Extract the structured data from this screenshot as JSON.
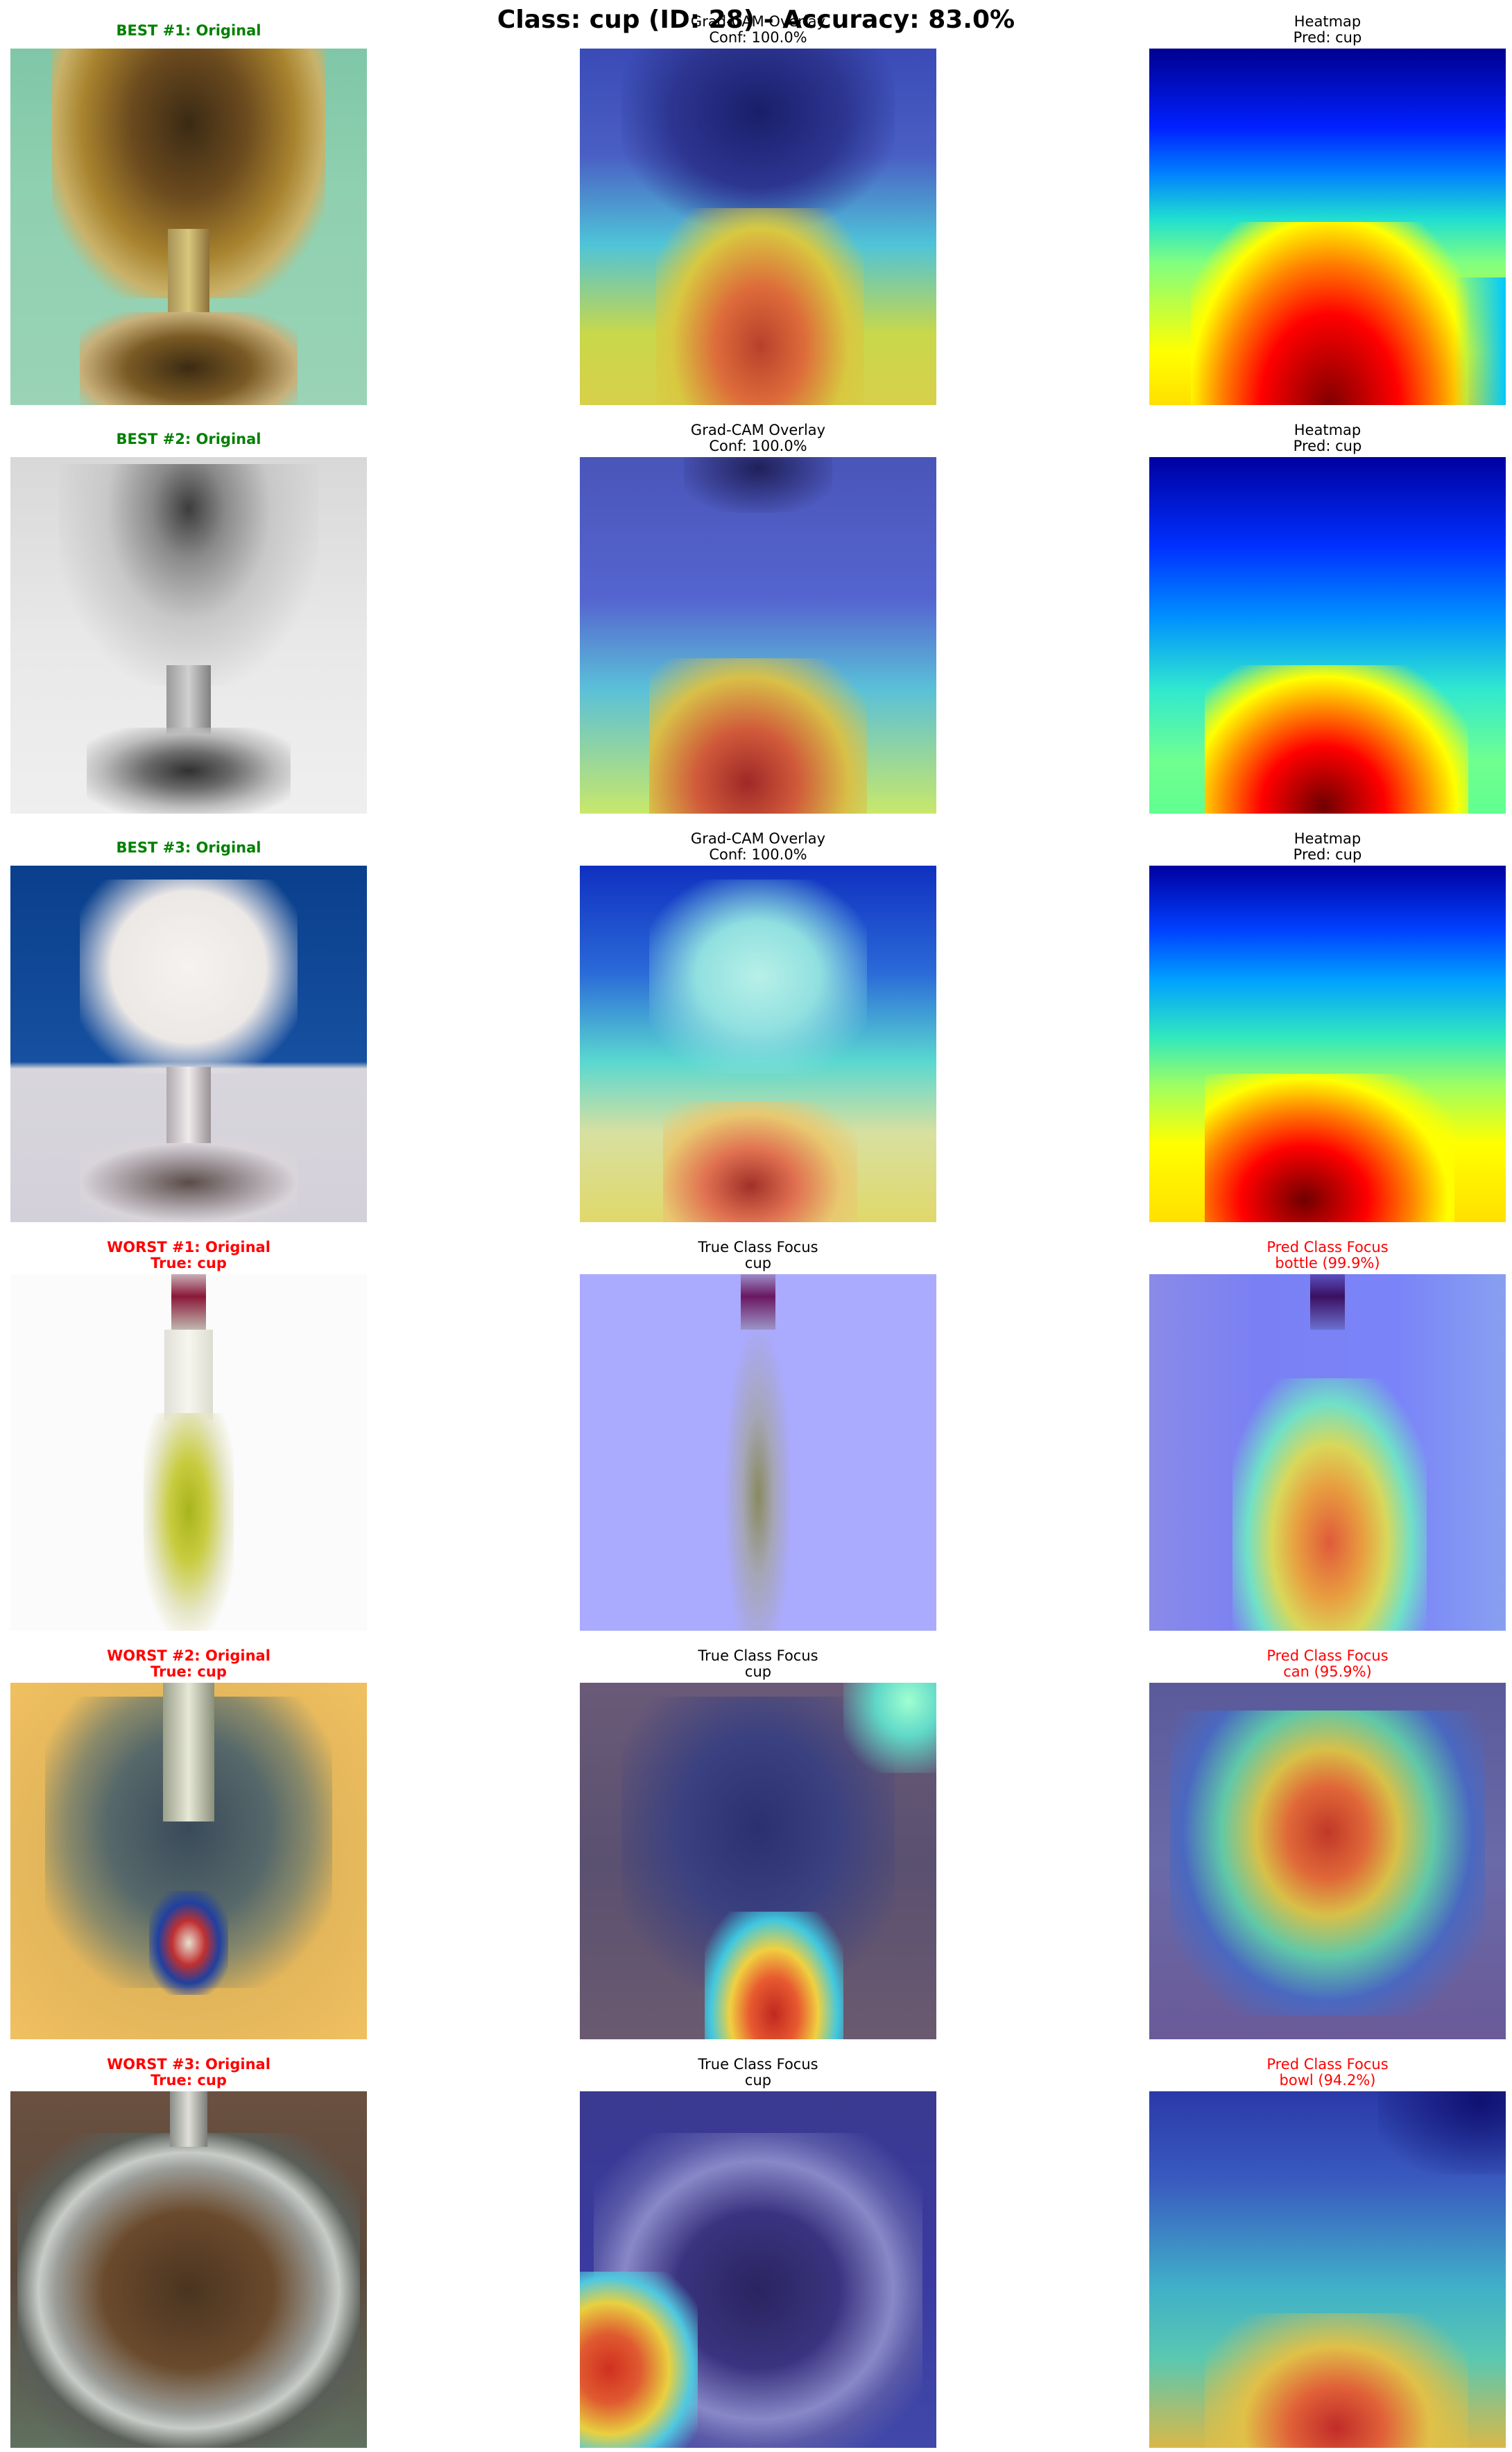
{
  "figure": {
    "title": "Class: cup (ID: 28) - Accuracy: 83.0%"
  },
  "colors": {
    "best": "#008000",
    "worst": "#ff0000",
    "neutral": "#000000"
  },
  "rows": [
    {
      "kind": "best",
      "original": {
        "line1": "BEST #1: Original"
      },
      "middle": {
        "line1": "Grad-CAM Overlay",
        "line2": "Conf: 100.0%"
      },
      "right": {
        "line1": "Heatmap",
        "line2": "Pred: cup"
      }
    },
    {
      "kind": "best",
      "original": {
        "line1": "BEST #2: Original"
      },
      "middle": {
        "line1": "Grad-CAM Overlay",
        "line2": "Conf: 100.0%"
      },
      "right": {
        "line1": "Heatmap",
        "line2": "Pred: cup"
      }
    },
    {
      "kind": "best",
      "original": {
        "line1": "BEST #3: Original"
      },
      "middle": {
        "line1": "Grad-CAM Overlay",
        "line2": "Conf: 100.0%"
      },
      "right": {
        "line1": "Heatmap",
        "line2": "Pred: cup"
      }
    },
    {
      "kind": "worst",
      "original": {
        "line1": "WORST #1: Original",
        "line2": "True: cup"
      },
      "middle": {
        "line1": "True Class Focus",
        "line2": "cup"
      },
      "right": {
        "line1": "Pred Class Focus",
        "line2": "bottle (99.9%)"
      }
    },
    {
      "kind": "worst",
      "original": {
        "line1": "WORST #2: Original",
        "line2": "True: cup"
      },
      "middle": {
        "line1": "True Class Focus",
        "line2": "cup"
      },
      "right": {
        "line1": "Pred Class Focus",
        "line2": "can (95.9%)"
      }
    },
    {
      "kind": "worst",
      "original": {
        "line1": "WORST #3: Original",
        "line2": "True: cup"
      },
      "middle": {
        "line1": "True Class Focus",
        "line2": "cup"
      },
      "right": {
        "line1": "Pred Class Focus",
        "line2": "bowl (94.2%)"
      }
    }
  ]
}
